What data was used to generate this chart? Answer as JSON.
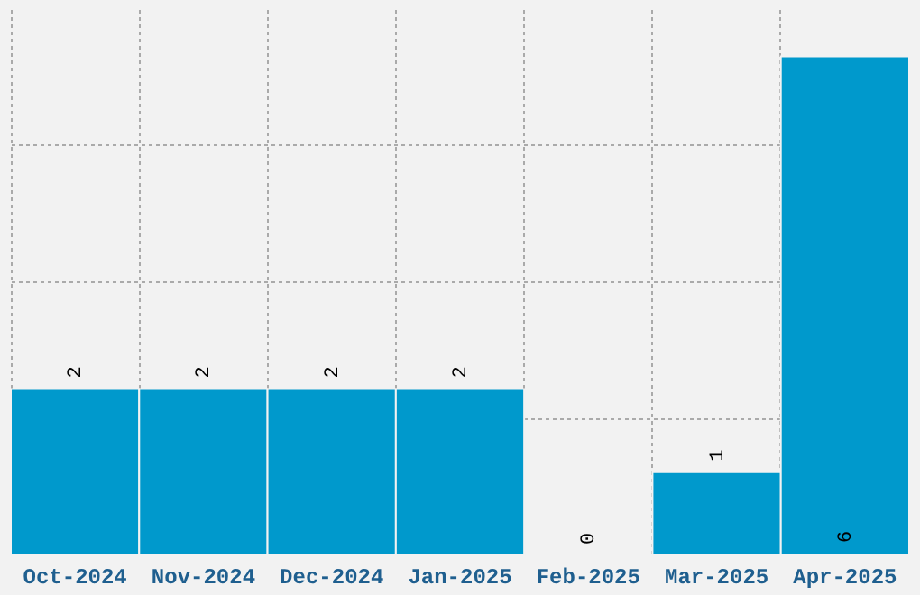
{
  "chart_data": {
    "type": "bar",
    "categories": [
      "Oct-2024",
      "Nov-2024",
      "Dec-2024",
      "Jan-2025",
      "Feb-2025",
      "Mar-2025",
      "Apr-2025"
    ],
    "values": [
      2,
      2,
      2,
      2,
      0,
      1,
      6
    ],
    "color": "#0099cc",
    "ylim": [
      0,
      6.57
    ],
    "yticks": [
      {
        "value": 1.65,
        "label": null
      },
      {
        "value": 3.3,
        "label": null
      },
      {
        "value": 4.95,
        "label": null
      }
    ],
    "tick_labels": "x",
    "grid": true,
    "data_labels": true
  }
}
